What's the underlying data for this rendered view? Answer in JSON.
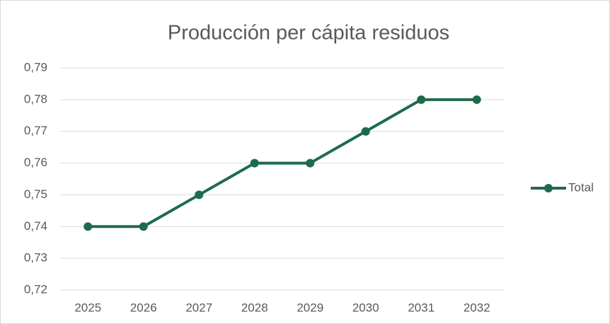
{
  "chart_data": {
    "type": "line",
    "title": "Producción per cápita residuos",
    "categories": [
      "2025",
      "2026",
      "2027",
      "2028",
      "2029",
      "2030",
      "2031",
      "2032"
    ],
    "series": [
      {
        "name": "Total",
        "color": "#1e6b4b",
        "values": [
          0.74,
          0.74,
          0.75,
          0.76,
          0.76,
          0.77,
          0.78,
          0.78
        ]
      }
    ],
    "ylim": [
      0.72,
      0.79
    ],
    "yticks": [
      {
        "value": 0.72,
        "label": "0,72"
      },
      {
        "value": 0.73,
        "label": "0,73"
      },
      {
        "value": 0.74,
        "label": "0,74"
      },
      {
        "value": 0.75,
        "label": "0,75"
      },
      {
        "value": 0.76,
        "label": "0,76"
      },
      {
        "value": 0.77,
        "label": "0,77"
      },
      {
        "value": 0.78,
        "label": "0,78"
      },
      {
        "value": 0.79,
        "label": "0,79"
      }
    ],
    "grid": true,
    "legend": "right"
  }
}
